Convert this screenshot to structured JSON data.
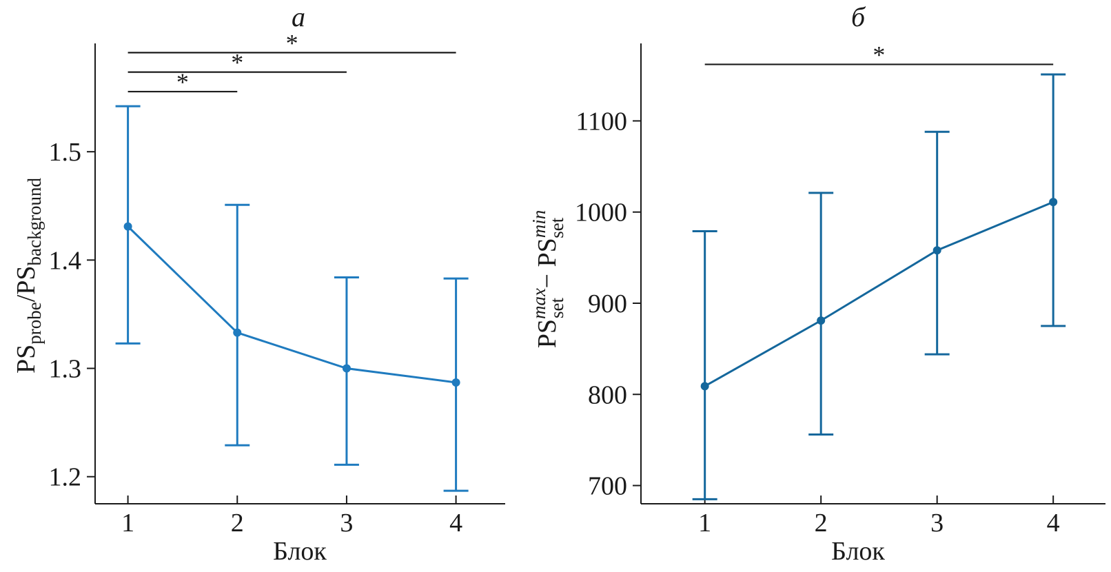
{
  "colors": {
    "series_a": "#1f7bbf",
    "series_b": "#14679c",
    "axis": "#1a1a1a"
  },
  "chart_data": [
    {
      "type": "line",
      "title": "а",
      "xlabel": "Блок",
      "ylabel_parts": {
        "base1": "PS",
        "sub1": "probe",
        "sep": "/",
        "base2": "PS",
        "sub2": "background"
      },
      "x": [
        1,
        2,
        3,
        4
      ],
      "x_ticks": [
        "1",
        "2",
        "3",
        "4"
      ],
      "xlim": [
        0.7,
        4.45
      ],
      "series": [
        {
          "values": [
            1.431,
            1.333,
            1.3,
            1.287
          ],
          "error_low": [
            1.323,
            1.229,
            1.211,
            1.187
          ],
          "error_high": [
            1.542,
            1.451,
            1.384,
            1.383
          ]
        }
      ],
      "ylim": [
        1.175,
        1.6
      ],
      "y_ticks": [
        "1.2",
        "1.3",
        "1.4",
        "1.5"
      ],
      "y_tick_values": [
        1.2,
        1.3,
        1.4,
        1.5
      ],
      "grid": false,
      "significance": [
        {
          "from": 1,
          "to": 2,
          "label": "*",
          "y": 1.5555
        },
        {
          "from": 1,
          "to": 3,
          "label": "*",
          "y": 1.5735
        },
        {
          "from": 1,
          "to": 4,
          "label": "*",
          "y": 1.5915
        }
      ]
    },
    {
      "type": "line",
      "title": "б",
      "xlabel": "Блок",
      "ylabel_parts": {
        "base1": "PS",
        "sup1": "max",
        "sub1": "set",
        "sep": " − ",
        "base2": "PS",
        "sup2": "min",
        "sub2": "set"
      },
      "x": [
        1,
        2,
        3,
        4
      ],
      "x_ticks": [
        "1",
        "2",
        "3",
        "4"
      ],
      "xlim": [
        0.45,
        4.45
      ],
      "series": [
        {
          "values": [
            809,
            881,
            958,
            1011
          ],
          "error_low": [
            685,
            756,
            844,
            875
          ],
          "error_high": [
            979,
            1021,
            1088,
            1151
          ]
        }
      ],
      "ylim": [
        680,
        1185
      ],
      "y_ticks": [
        "700",
        "800",
        "900",
        "1000",
        "1100"
      ],
      "y_tick_values": [
        700,
        800,
        900,
        1000,
        1100
      ],
      "grid": false,
      "significance": [
        {
          "from": 1,
          "to": 4,
          "label": "*",
          "y": 1162
        }
      ]
    }
  ]
}
